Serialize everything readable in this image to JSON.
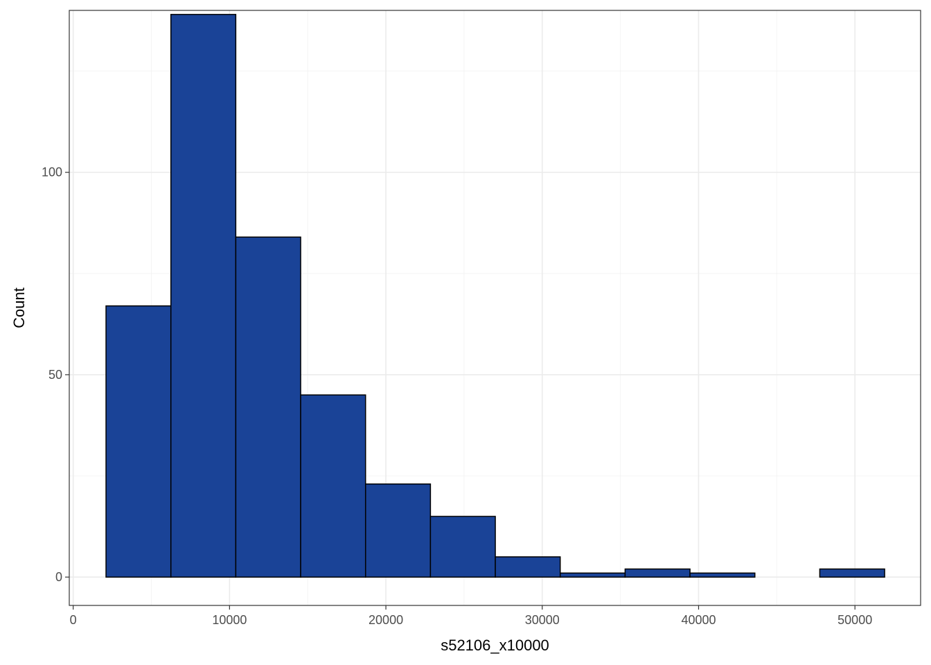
{
  "chart_data": {
    "type": "bar",
    "subtype": "histogram",
    "xlabel": "s52106_x10000",
    "ylabel": "Count",
    "xlim": [
      -250,
      54200
    ],
    "ylim": [
      -7,
      140
    ],
    "x_ticks": [
      0,
      10000,
      20000,
      30000,
      40000,
      50000
    ],
    "x_tick_labels": [
      "0",
      "10000",
      "20000",
      "30000",
      "40000",
      "50000"
    ],
    "y_ticks": [
      0,
      50,
      100
    ],
    "y_tick_labels": [
      "0",
      "50",
      "100"
    ],
    "grid": true,
    "bin_edges": [
      2100,
      6250,
      10400,
      14550,
      18700,
      22850,
      27000,
      31150,
      35300,
      39450,
      43600,
      47750,
      51900
    ],
    "values": [
      67,
      139,
      84,
      45,
      23,
      15,
      5,
      1,
      2,
      1,
      0,
      2
    ],
    "bar_color": "#1a4397",
    "bar_edge_color": "#000000"
  }
}
